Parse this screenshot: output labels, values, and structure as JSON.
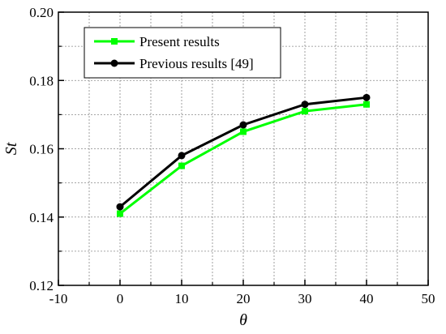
{
  "chart_data": {
    "type": "line",
    "title": "",
    "xlabel": "θ",
    "ylabel": "St",
    "xlim": [
      -10,
      50
    ],
    "ylim": [
      0.12,
      0.2
    ],
    "xticks": [
      -10,
      0,
      10,
      20,
      30,
      40,
      50
    ],
    "yticks": [
      0.12,
      0.14,
      0.16,
      0.18,
      0.2
    ],
    "xtick_labels": [
      "-10",
      "0",
      "10",
      "20",
      "30",
      "40",
      "50"
    ],
    "ytick_labels": [
      "0.12",
      "0.14",
      "0.16",
      "0.18",
      "0.20"
    ],
    "grid": true,
    "legend_position": "top-left",
    "x": [
      0,
      10,
      20,
      30,
      40
    ],
    "series": [
      {
        "name": "Present results",
        "values": [
          0.141,
          0.155,
          0.165,
          0.171,
          0.173
        ],
        "color": "#00ff00",
        "marker": "square"
      },
      {
        "name": "Previous results [49]",
        "values": [
          0.143,
          0.158,
          0.167,
          0.173,
          0.175
        ],
        "color": "#000000",
        "marker": "circle"
      }
    ]
  }
}
